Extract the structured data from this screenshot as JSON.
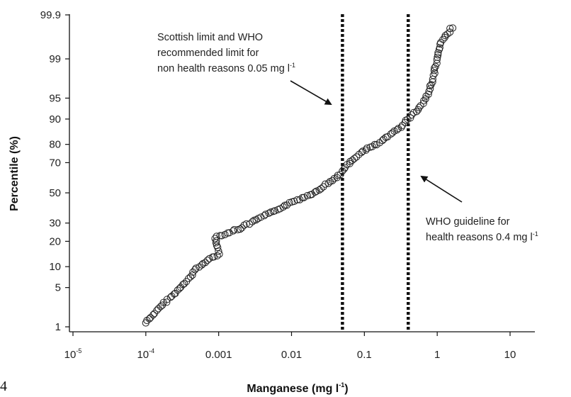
{
  "chart_data": {
    "type": "scatter",
    "xlabel_main": "Manganese (mg l",
    "xlabel_sup": "-1",
    "xlabel_end": ")",
    "ylabel": "Percentile (%)",
    "x_scale": "log",
    "y_scale": "normal-probability",
    "xlim": [
      1e-05,
      10
    ],
    "ylim": [
      1,
      99.9
    ],
    "x_ticks": [
      {
        "value": 1e-05,
        "base": "10",
        "exp": "-5"
      },
      {
        "value": 0.0001,
        "base": "10",
        "exp": "-4"
      },
      {
        "value": 0.001,
        "label": "0.001"
      },
      {
        "value": 0.01,
        "label": "0.01"
      },
      {
        "value": 0.1,
        "label": "0.1"
      },
      {
        "value": 1,
        "label": "1"
      },
      {
        "value": 10,
        "label": "10"
      }
    ],
    "y_ticks": [
      {
        "value": 1,
        "label": "1"
      },
      {
        "value": 5,
        "label": "5"
      },
      {
        "value": 10,
        "label": "10"
      },
      {
        "value": 20,
        "label": "20"
      },
      {
        "value": 30,
        "label": "30"
      },
      {
        "value": 50,
        "label": "50"
      },
      {
        "value": 70,
        "label": "70"
      },
      {
        "value": 80,
        "label": "80"
      },
      {
        "value": 90,
        "label": "90"
      },
      {
        "value": 95,
        "label": "95"
      },
      {
        "value": 99,
        "label": "99"
      },
      {
        "value": 99.9,
        "label": "99.9"
      }
    ],
    "reference_lines": [
      {
        "x": 0.05,
        "style": "dotted"
      },
      {
        "x": 0.4,
        "style": "dotted"
      }
    ],
    "annotations": [
      {
        "lines": [
          "Scottish limit and WHO",
          "recommended limit for",
          "non health reasons 0.05 mg l"
        ],
        "last_sup": "-1"
      },
      {
        "lines": [
          "WHO guideline for",
          "health reasons 0.4 mg l"
        ],
        "last_sup": "-1"
      }
    ],
    "anchors": [
      [
        0.0001,
        1.2
      ],
      [
        0.00015,
        2.2
      ],
      [
        0.0002,
        3.2
      ],
      [
        0.00025,
        4.0
      ],
      [
        0.0003,
        5.0
      ],
      [
        0.00035,
        6.0
      ],
      [
        0.0004,
        7.0
      ],
      [
        0.0005,
        9.5
      ],
      [
        0.0007,
        12.0
      ],
      [
        0.001,
        14.5
      ],
      [
        0.0009,
        22.0
      ],
      [
        0.0015,
        25.0
      ],
      [
        0.002,
        27.0
      ],
      [
        0.003,
        31.0
      ],
      [
        0.005,
        36.0
      ],
      [
        0.008,
        41.0
      ],
      [
        0.012,
        45.0
      ],
      [
        0.02,
        50.0
      ],
      [
        0.03,
        56.0
      ],
      [
        0.045,
        62.0
      ],
      [
        0.06,
        69.0
      ],
      [
        0.08,
        74.0
      ],
      [
        0.1,
        77.0
      ],
      [
        0.15,
        80.0
      ],
      [
        0.2,
        83.0
      ],
      [
        0.3,
        87.0
      ],
      [
        0.4,
        90.0
      ],
      [
        0.5,
        92.0
      ],
      [
        0.6,
        93.5
      ],
      [
        0.7,
        95.0
      ],
      [
        0.8,
        96.5
      ],
      [
        0.9,
        98.0
      ],
      [
        1.0,
        99.0
      ],
      [
        1.1,
        99.5
      ],
      [
        1.6,
        99.8
      ]
    ],
    "sample_count": 170
  },
  "corner_text": "4"
}
